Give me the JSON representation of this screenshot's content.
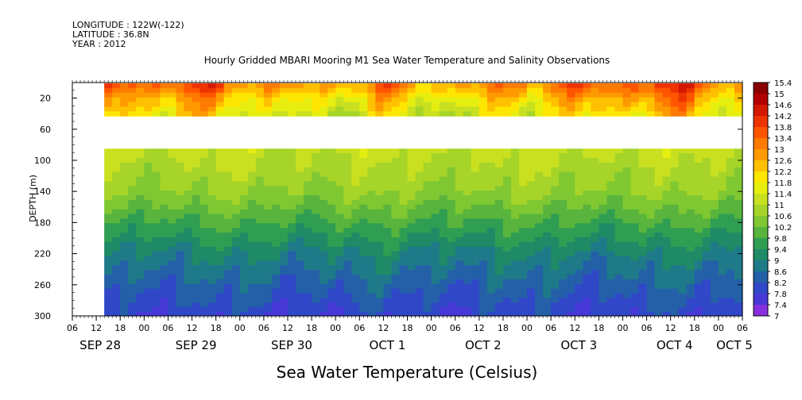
{
  "header": {
    "longitude": "LONGITUDE : 122W(-122)",
    "latitude": "LATITUDE : 36.8N",
    "year": "YEAR : 2012"
  },
  "chart_data": {
    "type": "heatmap",
    "title": "Hourly Gridded MBARI Mooring M1 Sea Water Temperature and Salinity Observations",
    "xlabel_bottom": "Sea Water Temperature (Celsius)",
    "ylabel": "DEPTH (m)",
    "y_ticks": [
      20,
      60,
      100,
      140,
      180,
      220,
      260,
      300
    ],
    "y_range": [
      0,
      300
    ],
    "y_data_top": 1,
    "x_hour_ticks": [
      "06",
      "12",
      "18",
      "00",
      "06",
      "12",
      "18",
      "00",
      "06",
      "12",
      "18",
      "00",
      "06",
      "12",
      "18",
      "00",
      "06",
      "12",
      "18",
      "00",
      "06",
      "12",
      "18",
      "00",
      "06",
      "12",
      "18",
      "00",
      "06"
    ],
    "x_day_labels": [
      "SEP 28",
      "SEP 29",
      "SEP 30",
      "OCT  1",
      "OCT  2",
      "OCT  3",
      "OCT  4",
      "OCT  5"
    ],
    "x_range_hours": [
      0,
      168
    ],
    "data_start_hour": 8,
    "gap_depth": [
      40,
      80
    ],
    "colorbar": {
      "labels": [
        "15.4",
        "15",
        "14.6",
        "14.2",
        "13.8",
        "13.4",
        "13",
        "12.6",
        "12.2",
        "11.8",
        "11.4",
        "11",
        "10.6",
        "10.2",
        "9.8",
        "9.4",
        "9",
        "8.6",
        "8.2",
        "7.8",
        "7.4",
        "7"
      ],
      "colors": [
        "#8B0000",
        "#B30000",
        "#D41800",
        "#EE3300",
        "#FF5500",
        "#FF7A00",
        "#FF9900",
        "#FFC000",
        "#FFE600",
        "#E6EE10",
        "#C8E020",
        "#A6D428",
        "#7FC832",
        "#58B43C",
        "#2F9E52",
        "#1E8A66",
        "#1E7A88",
        "#2460A8",
        "#3048C8",
        "#4838D8",
        "#8830E0",
        "#CC20E8"
      ],
      "range": [
        7,
        15.4
      ]
    },
    "depth_profile": [
      {
        "depth": 5,
        "temp": 13.0
      },
      {
        "depth": 20,
        "temp": 12.2
      },
      {
        "depth": 40,
        "temp": 11.6
      },
      {
        "depth": 80,
        "temp": 11.4
      },
      {
        "depth": 100,
        "temp": 11.2
      },
      {
        "depth": 140,
        "temp": 10.8
      },
      {
        "depth": 180,
        "temp": 10.0
      },
      {
        "depth": 220,
        "temp": 9.2
      },
      {
        "depth": 260,
        "temp": 8.6
      },
      {
        "depth": 300,
        "temp": 8.1
      }
    ]
  }
}
